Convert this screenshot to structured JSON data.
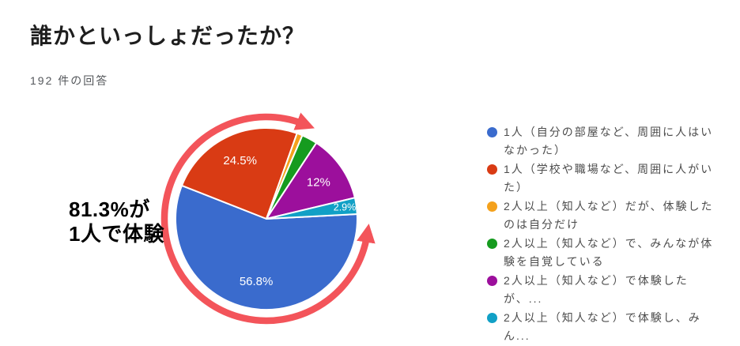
{
  "header": {
    "title": "誰かといっしょだったか？",
    "responses_label": "192 件の回答"
  },
  "annotation": {
    "line1": "81.3%が",
    "line2": "1人で体験",
    "highlighted_share": "81.3%",
    "arrow_color": "#f3545a"
  },
  "chart_data": {
    "type": "pie",
    "title": "誰かといっしょだったか？",
    "total_responses": 192,
    "start_angle_deg": 87,
    "direction": "clockwise",
    "legend_position": "right",
    "slices": [
      {
        "label": "1人（自分の部屋など、周囲に人はいなかった）",
        "value_pct": 56.8,
        "data_label": "56.8%",
        "color": "#3a6bcd"
      },
      {
        "label": "1人（学校や職場など、周囲に人がいた）",
        "value_pct": 24.5,
        "data_label": "24.5%",
        "color": "#d93b14"
      },
      {
        "label": "2人以上（知人など）だが、体験したのは自分だけ",
        "value_pct": 1.0,
        "data_label": "",
        "color": "#f4a11c"
      },
      {
        "label": "2人以上（知人など）で、みんなが体験を自覚している",
        "value_pct": 2.8,
        "data_label": "",
        "color": "#169b1f"
      },
      {
        "label": "2人以上（知人など）で体験したが、...",
        "value_pct": 12.0,
        "data_label": "12%",
        "color": "#9c0f9c"
      },
      {
        "label": "2人以上（知人など）で体験し、みん...",
        "value_pct": 2.9,
        "data_label": "2.9%",
        "color": "#11a0c6"
      }
    ]
  }
}
